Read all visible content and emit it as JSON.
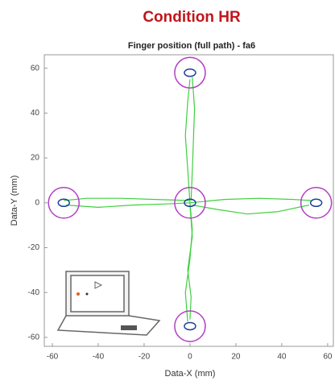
{
  "chart_data": {
    "type": "trajectory",
    "title": "Condition HR",
    "subtitle": "Finger position (full path) - fa6",
    "x_label": "Data-X (mm)",
    "y_label": "Data-Y (mm)",
    "xlim": [
      -63.5,
      62.5
    ],
    "ylim": [
      -64,
      66
    ],
    "xticks": [
      -60,
      -40,
      -20,
      0,
      20,
      40,
      60
    ],
    "yticks": [
      -60,
      -40,
      -20,
      0,
      20,
      40,
      60
    ],
    "target_color": "#b33fc4",
    "path_color": "#3fcf3f",
    "targets": {
      "x": [
        0,
        -55,
        0,
        55,
        0
      ],
      "y": [
        58,
        0,
        0,
        0,
        -55
      ]
    },
    "paths": [
      {
        "x": [
          0,
          -1,
          -2,
          -1,
          0
        ],
        "y": [
          0,
          15,
          30,
          45,
          55
        ]
      },
      {
        "x": [
          1,
          2,
          1.5,
          1,
          0.5
        ],
        "y": [
          56,
          42,
          28,
          14,
          1
        ]
      },
      {
        "x": [
          0,
          -15,
          -30,
          -45,
          -55
        ],
        "y": [
          1,
          1.5,
          2,
          2,
          1
        ]
      },
      {
        "x": [
          -54,
          -40,
          -25,
          -10,
          0
        ],
        "y": [
          -1,
          -2,
          -1,
          -0.5,
          0
        ]
      },
      {
        "x": [
          0,
          15,
          30,
          45,
          53
        ],
        "y": [
          0,
          1.5,
          2,
          1.5,
          1
        ]
      },
      {
        "x": [
          52,
          38,
          25,
          12,
          1
        ],
        "y": [
          -1,
          -4,
          -5,
          -3,
          -1
        ]
      },
      {
        "x": [
          0,
          1,
          -1,
          0.5,
          0
        ],
        "y": [
          -1,
          -15,
          -30,
          -42,
          -52
        ]
      },
      {
        "x": [
          -1,
          -2,
          0,
          1,
          0
        ],
        "y": [
          -53,
          -40,
          -25,
          -12,
          0
        ]
      }
    ]
  }
}
